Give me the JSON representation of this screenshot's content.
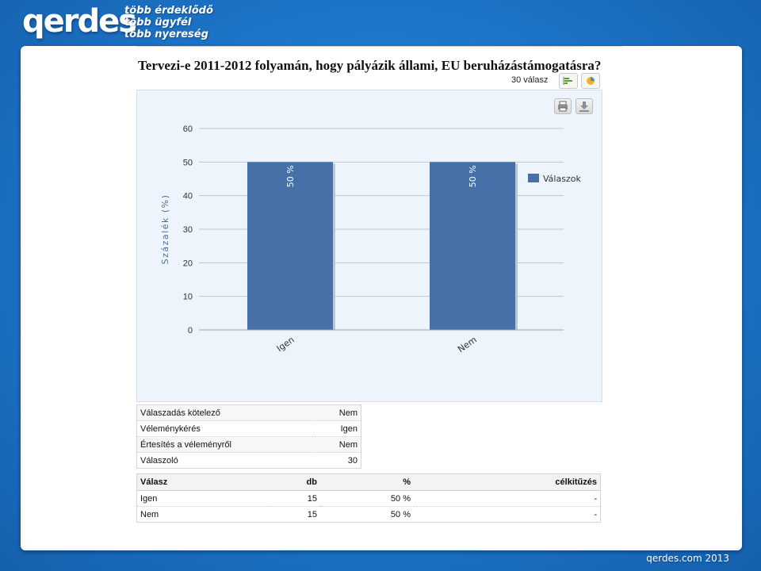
{
  "brand": {
    "logo_text": "qerdes",
    "slogans": [
      "több érdeklődő",
      "több ügyfél",
      "több nyereség"
    ]
  },
  "survey": {
    "question": "Tervezi-e 2011-2012 folyamán, hogy pályázik állami, EU beruházástámogatásra?",
    "answers_count": "30 válasz",
    "icons": {
      "bar_view": "bar-chart-icon",
      "pie_view": "pie-chart-icon",
      "print": "print-icon",
      "download": "download-icon"
    }
  },
  "chart_data": {
    "type": "bar",
    "categories": [
      "Igen",
      "Nem"
    ],
    "series": [
      {
        "name": "Válaszok",
        "values": [
          50,
          50
        ],
        "labels": [
          "50 %",
          "50 %"
        ]
      }
    ],
    "ylabel": "Százalék (%)",
    "xlabel": "",
    "ylim": [
      0,
      60
    ],
    "yticks": [
      0,
      10,
      20,
      30,
      40,
      50,
      60
    ],
    "grid": true,
    "legend_position": "right",
    "colors": {
      "bar": "#4570a8",
      "grid": "#bfc6cf",
      "axis_text": "#333333",
      "ylabel": "#4a6f95"
    }
  },
  "properties": [
    {
      "label": "Válaszadás kötelező",
      "value": "Nem"
    },
    {
      "label": "Véleménykérés",
      "value": "Igen"
    },
    {
      "label": "Értesítés a véleményről",
      "value": "Nem"
    },
    {
      "label": "Válaszoló",
      "value": "30"
    }
  ],
  "answers_table": {
    "headers": [
      "Válasz",
      "db",
      "%",
      "célkitűzés"
    ],
    "rows": [
      [
        "Igen",
        "15",
        "50 %",
        "-"
      ],
      [
        "Nem",
        "15",
        "50 %",
        "-"
      ]
    ]
  },
  "footer": "qerdes.com 2013"
}
